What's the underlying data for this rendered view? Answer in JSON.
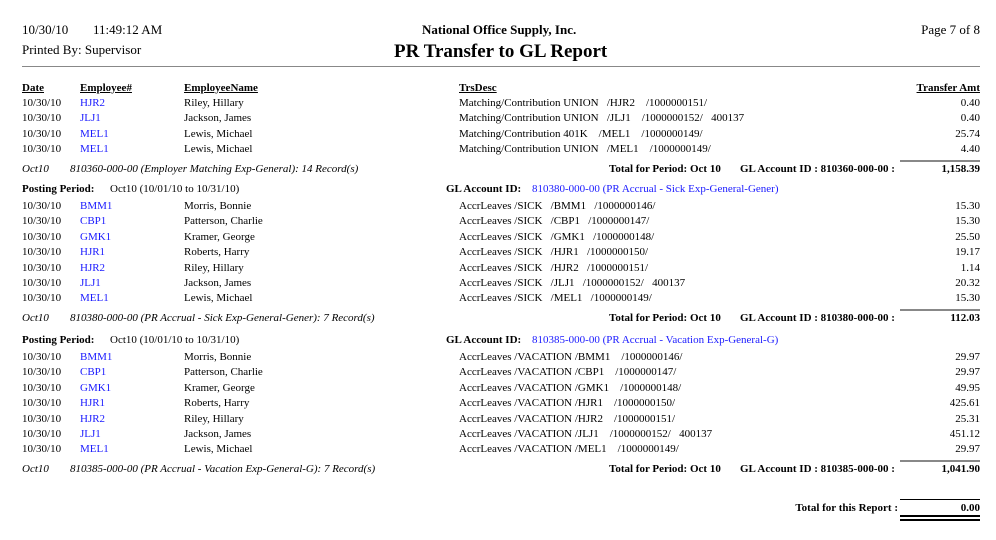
{
  "header": {
    "date": "10/30/10",
    "time": "11:49:12 AM",
    "printed_by": "Printed By: Supervisor",
    "company": "National Office Supply, Inc.",
    "title": "PR Transfer to GL Report",
    "page": "Page 7 of  8"
  },
  "columns": {
    "date": "Date",
    "employee_no": "Employee#",
    "employee_name": "EmployeeName",
    "trs_desc": "TrsDesc",
    "amount": "Transfer Amt"
  },
  "sections": [
    {
      "posting_label": "",
      "posting_value": "",
      "gl_label": "",
      "gl_value": "",
      "rows": [
        {
          "date": "10/30/10",
          "emp": "HJR2",
          "name": "Riley, Hillary",
          "desc": "Matching/Contribution UNION   /HJR2    /1000000151/",
          "amt": "0.40"
        },
        {
          "date": "10/30/10",
          "emp": "JLJ1",
          "name": "Jackson, James",
          "desc": "Matching/Contribution UNION   /JLJ1    /1000000152/   400137",
          "amt": "0.40"
        },
        {
          "date": "10/30/10",
          "emp": "MEL1",
          "name": "Lewis, Michael",
          "desc": "Matching/Contribution 401K    /MEL1    /1000000149/",
          "amt": "25.74"
        },
        {
          "date": "10/30/10",
          "emp": "MEL1",
          "name": "Lewis, Michael",
          "desc": "Matching/Contribution UNION   /MEL1    /1000000149/",
          "amt": "4.40"
        }
      ],
      "footer_period": "Oct10",
      "footer_desc": "810360-000-00 (Employer Matching Exp-General): 14 Record(s)",
      "total_period": "Total for Period: Oct 10",
      "total_gl": "GL Account ID : 810360-000-00 :",
      "total": "1,158.39"
    },
    {
      "posting_label": "Posting Period:",
      "posting_value": "Oct10 (10/01/10 to 10/31/10)",
      "gl_label": "GL Account ID:",
      "gl_value": "810380-000-00 (PR Accrual - Sick Exp-General-Gener)",
      "rows": [
        {
          "date": "10/30/10",
          "emp": "BMM1",
          "name": "Morris, Bonnie",
          "desc": "AccrLeaves /SICK   /BMM1   /1000000146/",
          "amt": "15.30"
        },
        {
          "date": "10/30/10",
          "emp": "CBP1",
          "name": "Patterson, Charlie",
          "desc": "AccrLeaves /SICK   /CBP1   /1000000147/",
          "amt": "15.30"
        },
        {
          "date": "10/30/10",
          "emp": "GMK1",
          "name": "Kramer, George",
          "desc": "AccrLeaves /SICK   /GMK1   /1000000148/",
          "amt": "25.50"
        },
        {
          "date": "10/30/10",
          "emp": "HJR1",
          "name": "Roberts, Harry",
          "desc": "AccrLeaves /SICK   /HJR1   /1000000150/",
          "amt": "19.17"
        },
        {
          "date": "10/30/10",
          "emp": "HJR2",
          "name": "Riley, Hillary",
          "desc": "AccrLeaves /SICK   /HJR2   /1000000151/",
          "amt": "1.14"
        },
        {
          "date": "10/30/10",
          "emp": "JLJ1",
          "name": "Jackson, James",
          "desc": "AccrLeaves /SICK   /JLJ1   /1000000152/   400137",
          "amt": "20.32"
        },
        {
          "date": "10/30/10",
          "emp": "MEL1",
          "name": "Lewis, Michael",
          "desc": "AccrLeaves /SICK   /MEL1   /1000000149/",
          "amt": "15.30"
        }
      ],
      "footer_period": "Oct10",
      "footer_desc": "810380-000-00 (PR Accrual - Sick Exp-General-Gener): 7 Record(s)",
      "total_period": "Total for Period: Oct 10",
      "total_gl": "GL Account ID : 810380-000-00 :",
      "total": "112.03"
    },
    {
      "posting_label": "Posting Period:",
      "posting_value": "Oct10 (10/01/10 to 10/31/10)",
      "gl_label": "GL Account ID:",
      "gl_value": "810385-000-00 (PR Accrual - Vacation Exp-General-G)",
      "rows": [
        {
          "date": "10/30/10",
          "emp": "BMM1",
          "name": "Morris, Bonnie",
          "desc": "AccrLeaves /VACATION /BMM1    /1000000146/",
          "amt": "29.97"
        },
        {
          "date": "10/30/10",
          "emp": "CBP1",
          "name": "Patterson, Charlie",
          "desc": "AccrLeaves /VACATION /CBP1    /1000000147/",
          "amt": "29.97"
        },
        {
          "date": "10/30/10",
          "emp": "GMK1",
          "name": "Kramer, George",
          "desc": "AccrLeaves /VACATION /GMK1    /1000000148/",
          "amt": "49.95"
        },
        {
          "date": "10/30/10",
          "emp": "HJR1",
          "name": "Roberts, Harry",
          "desc": "AccrLeaves /VACATION /HJR1    /1000000150/",
          "amt": "425.61"
        },
        {
          "date": "10/30/10",
          "emp": "HJR2",
          "name": "Riley, Hillary",
          "desc": "AccrLeaves /VACATION /HJR2    /1000000151/",
          "amt": "25.31"
        },
        {
          "date": "10/30/10",
          "emp": "JLJ1",
          "name": "Jackson, James",
          "desc": "AccrLeaves /VACATION /JLJ1    /1000000152/   400137",
          "amt": "451.12"
        },
        {
          "date": "10/30/10",
          "emp": "MEL1",
          "name": "Lewis, Michael",
          "desc": "AccrLeaves /VACATION /MEL1    /1000000149/",
          "amt": "29.97"
        }
      ],
      "footer_period": "Oct10",
      "footer_desc": "810385-000-00 (PR Accrual - Vacation Exp-General-G): 7 Record(s)",
      "total_period": "Total for Period: Oct 10",
      "total_gl": "GL Account ID : 810385-000-00 :",
      "total": "1,041.90"
    }
  ],
  "grand_total": {
    "label": "Total for this Report :",
    "value": "0.00"
  }
}
